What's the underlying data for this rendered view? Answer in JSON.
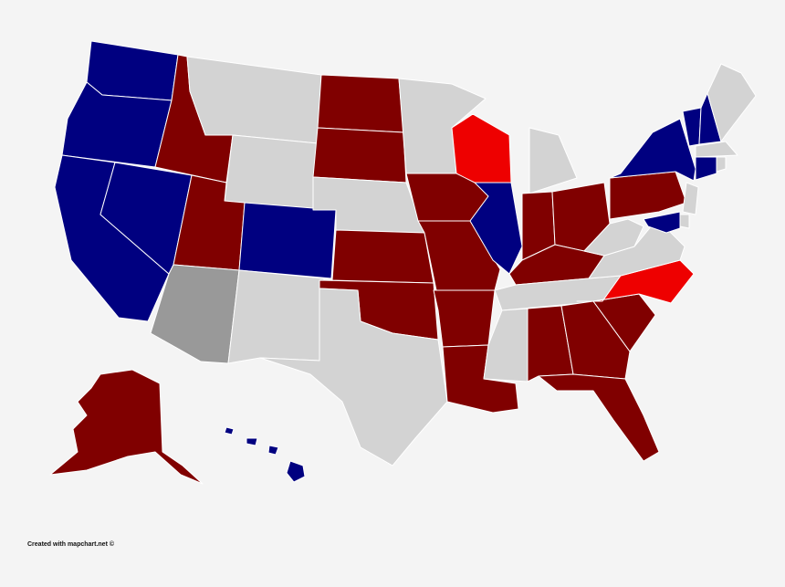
{
  "map": {
    "credit": "Created with mapchart.net ©",
    "colors": {
      "dark_red": "#800000",
      "red": "#ee0000",
      "dark_blue": "#000080",
      "gray": "#999999",
      "light_gray": "#d3d3d3",
      "background": "#f4f4f4"
    },
    "states": {
      "WA": "dark_blue",
      "OR": "dark_blue",
      "CA": "dark_blue",
      "NV": "dark_blue",
      "ID": "dark_red",
      "MT": "light_gray",
      "WY": "light_gray",
      "UT": "dark_red",
      "AZ": "gray",
      "CO": "dark_blue",
      "NM": "light_gray",
      "ND": "dark_red",
      "SD": "dark_red",
      "NE": "light_gray",
      "KS": "dark_red",
      "OK": "dark_red",
      "TX": "light_gray",
      "MN": "light_gray",
      "IA": "dark_red",
      "MO": "dark_red",
      "AR": "dark_red",
      "LA": "dark_red",
      "WI": "red",
      "IL": "dark_blue",
      "MI": "light_gray",
      "IN": "dark_red",
      "OH": "dark_red",
      "KY": "dark_red",
      "TN": "light_gray",
      "MS": "light_gray",
      "AL": "dark_red",
      "GA": "dark_red",
      "FL": "dark_red",
      "SC": "dark_red",
      "NC": "red",
      "VA": "light_gray",
      "WV": "light_gray",
      "PA": "dark_red",
      "NY": "dark_blue",
      "VT": "dark_blue",
      "NH": "dark_blue",
      "ME": "light_gray",
      "MA": "light_gray",
      "CT": "dark_blue",
      "RI": "light_gray",
      "NJ": "light_gray",
      "DE": "light_gray",
      "MD": "dark_blue",
      "AK": "dark_red",
      "HI": "dark_blue"
    }
  }
}
